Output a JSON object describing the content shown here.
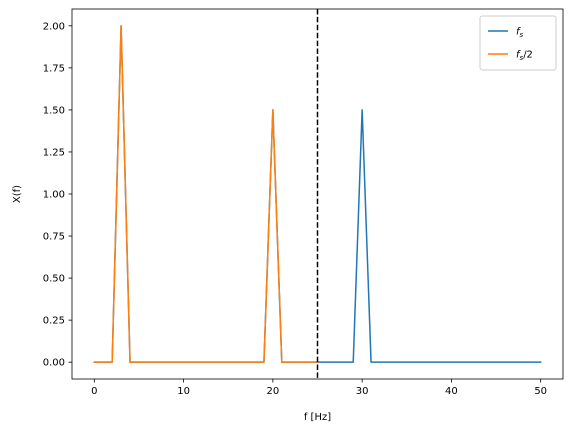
{
  "chart_data": {
    "type": "line",
    "title": "",
    "xlabel": "f [Hz]",
    "ylabel": "X(f)",
    "xlim": [
      -2.5,
      52.5
    ],
    "ylim": [
      -0.1,
      2.1
    ],
    "xticks": [
      0,
      10,
      20,
      30,
      40,
      50
    ],
    "xtick_labels": [
      "0",
      "10",
      "20",
      "30",
      "40",
      "50"
    ],
    "yticks": [
      0.0,
      0.25,
      0.5,
      0.75,
      1.0,
      1.25,
      1.5,
      1.75,
      2.0
    ],
    "ytick_labels": [
      "0.00",
      "0.25",
      "0.50",
      "0.75",
      "1.00",
      "1.25",
      "1.50",
      "1.75",
      "2.00"
    ],
    "grid": false,
    "legend_position": "top-right",
    "vline": {
      "x": 25,
      "color": "#000000",
      "style": "dashed"
    },
    "series": [
      {
        "name": "f_s",
        "legend_main": "f",
        "legend_sub": "s",
        "legend_suffix": "",
        "color": "#1f77b4",
        "x": [
          0,
          2,
          3,
          4,
          19,
          20,
          21,
          29,
          30,
          31,
          50
        ],
        "y": [
          0,
          0,
          2.0,
          0,
          0,
          1.5,
          0,
          0,
          1.5,
          0,
          0
        ]
      },
      {
        "name": "f_s/2",
        "legend_main": "f",
        "legend_sub": "s",
        "legend_suffix": "/2",
        "color": "#ff7f0e",
        "x": [
          0,
          2,
          3,
          4,
          19,
          20,
          21,
          25
        ],
        "y": [
          0,
          0,
          2.0,
          0,
          0,
          1.5,
          0,
          0
        ]
      }
    ]
  }
}
